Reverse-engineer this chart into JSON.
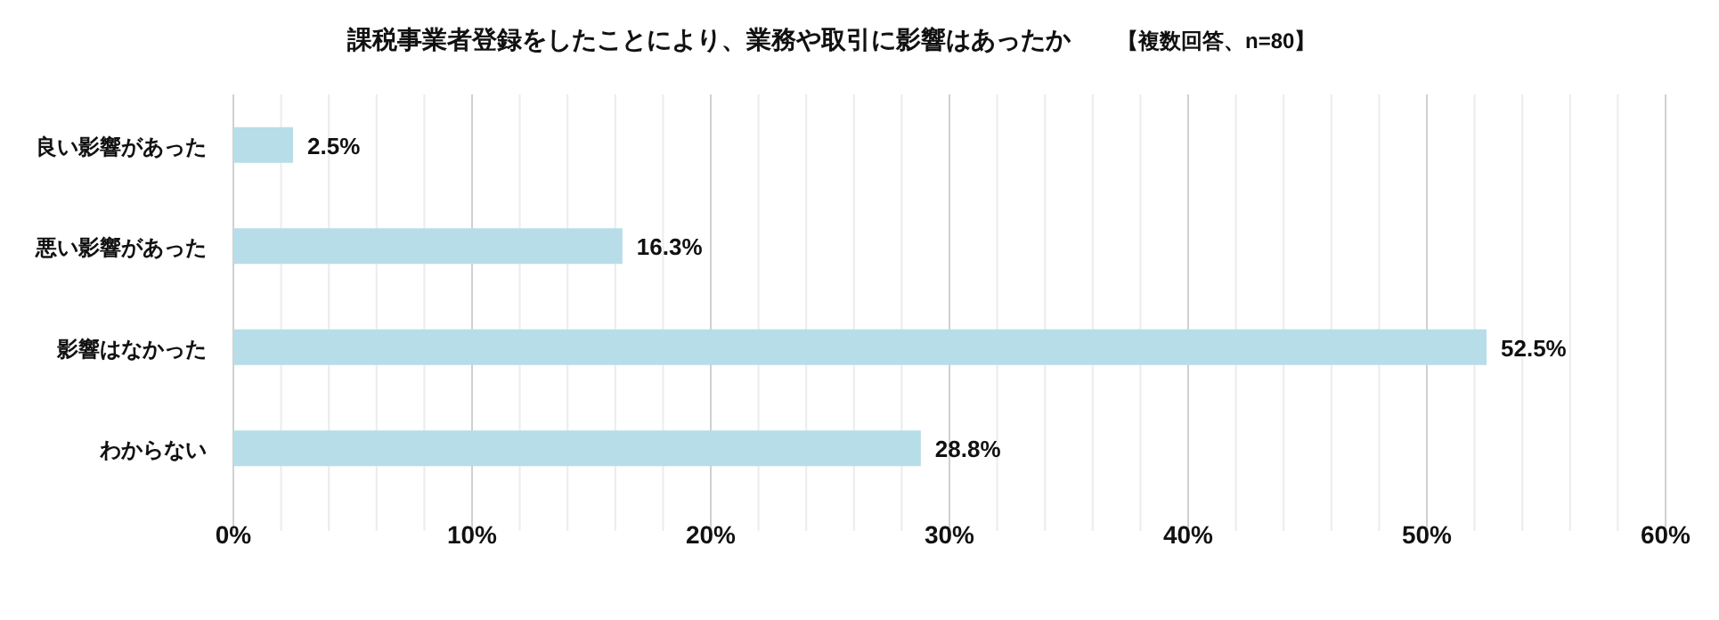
{
  "chart_data": {
    "type": "bar",
    "orientation": "horizontal",
    "title": "課税事業者登録をしたことにより、業務や取引に影響はあったか",
    "subtitle": "【複数回答、n=80】",
    "categories": [
      "良い影響があった",
      "悪い影響があった",
      "影響はなかった",
      "わからない"
    ],
    "values": [
      2.5,
      16.3,
      52.5,
      28.8
    ],
    "value_labels": [
      "2.5%",
      "16.3%",
      "52.5%",
      "28.8%"
    ],
    "color": "#b7dde8",
    "xlim": [
      0,
      60
    ],
    "xticks": [
      {
        "value": 0,
        "label": "0%"
      },
      {
        "value": 2,
        "label": null
      },
      {
        "value": 4,
        "label": null
      },
      {
        "value": 6,
        "label": null
      },
      {
        "value": 8,
        "label": null
      },
      {
        "value": 10,
        "label": "10%"
      },
      {
        "value": 12,
        "label": null
      },
      {
        "value": 14,
        "label": null
      },
      {
        "value": 16,
        "label": null
      },
      {
        "value": 18,
        "label": null
      },
      {
        "value": 20,
        "label": "20%"
      },
      {
        "value": 22,
        "label": null
      },
      {
        "value": 24,
        "label": null
      },
      {
        "value": 26,
        "label": null
      },
      {
        "value": 28,
        "label": null
      },
      {
        "value": 30,
        "label": "30%"
      },
      {
        "value": 32,
        "label": null
      },
      {
        "value": 34,
        "label": null
      },
      {
        "value": 36,
        "label": null
      },
      {
        "value": 38,
        "label": null
      },
      {
        "value": 40,
        "label": "40%"
      },
      {
        "value": 42,
        "label": null
      },
      {
        "value": 44,
        "label": null
      },
      {
        "value": 46,
        "label": null
      },
      {
        "value": 48,
        "label": null
      },
      {
        "value": 50,
        "label": "50%"
      },
      {
        "value": 52,
        "label": null
      },
      {
        "value": 54,
        "label": null
      },
      {
        "value": 56,
        "label": null
      },
      {
        "value": 58,
        "label": null
      },
      {
        "value": 60,
        "label": "60%"
      }
    ],
    "grid": "x"
  }
}
